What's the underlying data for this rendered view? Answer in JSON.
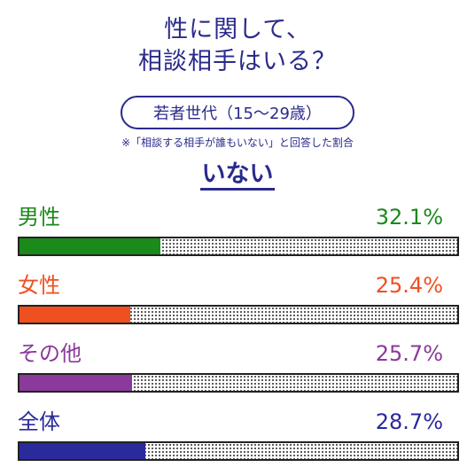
{
  "title_lines": [
    "性に関して、",
    "相談相手はいる？"
  ],
  "subtitle": "若者世代（15〜29歳）",
  "note": "※「相談する相手が誰もいない」と回答した割合",
  "headline": "いない",
  "colors": {
    "title": "#2a2a8c",
    "male": "#1a8a1a",
    "female": "#f05020",
    "other": "#8a3a9a",
    "all": "#2a2a9c",
    "track_dots": "#333333"
  },
  "chart_data": {
    "type": "bar",
    "orientation": "horizontal",
    "title": "性に関して、相談相手はいる？",
    "subtitle": "若者世代（15〜29歳）",
    "note": "※「相談する相手が誰もいない」と回答した割合",
    "categories": [
      "男性",
      "女性",
      "その他",
      "全体"
    ],
    "values": [
      32.1,
      25.4,
      25.7,
      28.7
    ],
    "value_labels": [
      "32.1%",
      "25.4%",
      "25.7%",
      "28.7%"
    ],
    "unit": "%",
    "xlim": [
      0,
      100
    ],
    "grid": false,
    "legend": "none",
    "colors": [
      "#1a8a1a",
      "#f05020",
      "#8a3a9a",
      "#2a2a9c"
    ]
  }
}
